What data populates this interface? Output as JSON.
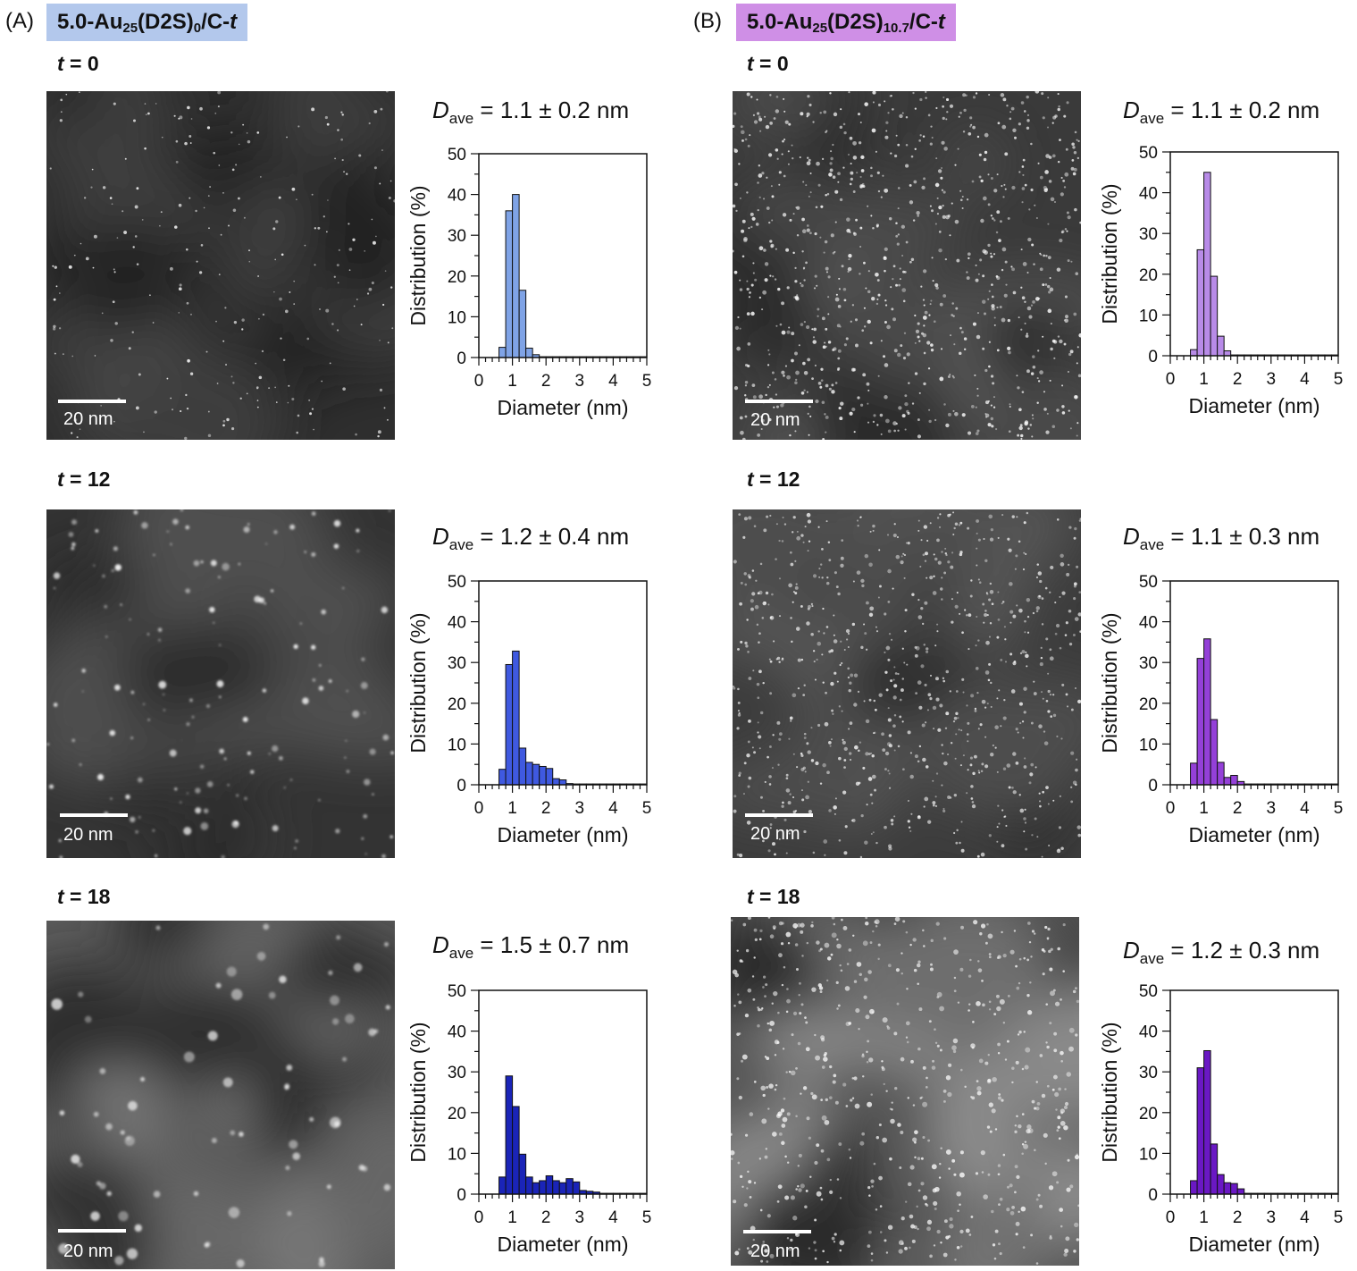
{
  "panels": [
    {
      "letter": "(A)",
      "title_main": "5.0-Au",
      "title_sub1": "25",
      "title_mid": "(D2S)",
      "title_sub2": "0",
      "title_tail": "/C-",
      "title_t": "t",
      "title_bg": "#b3c8ec"
    },
    {
      "letter": "(B)",
      "title_main": "5.0-Au",
      "title_sub1": "25",
      "title_mid": "(D2S)",
      "title_sub2": "10.7",
      "title_tail": "/C-",
      "title_t": "t",
      "title_bg": "#cf8fe6"
    }
  ],
  "rows": [
    {
      "t_sym": "t",
      "t_eq": " = 0"
    },
    {
      "t_sym": "t",
      "t_eq": " = 12"
    },
    {
      "t_sym": "t",
      "t_eq": " = 18"
    }
  ],
  "scale_label": "20 nm",
  "dave": [
    {
      "D": "D",
      "sub": "ave",
      "text": " = 1.1 ± 0.2 nm"
    },
    {
      "D": "D",
      "sub": "ave",
      "text": " = 1.2 ± 0.4 nm"
    },
    {
      "D": "D",
      "sub": "ave",
      "text": " = 1.5 ± 0.7 nm"
    },
    {
      "D": "D",
      "sub": "ave",
      "text": " = 1.1 ± 0.2 nm"
    },
    {
      "D": "D",
      "sub": "ave",
      "text": " = 1.1 ± 0.3 nm"
    },
    {
      "D": "D",
      "sub": "ave",
      "text": " = 1.2 ± 0.3 nm"
    }
  ],
  "chart_data": [
    {
      "type": "bar",
      "panel": "A",
      "t": 0,
      "color": "#7fa3e6",
      "xlabel": "Diameter (nm)",
      "ylabel": "Distribution (%)",
      "xlim": [
        0,
        5
      ],
      "ylim": [
        0,
        50
      ],
      "xticks": [
        0,
        1,
        2,
        3,
        4,
        5
      ],
      "yticks": [
        0,
        10,
        20,
        30,
        40,
        50
      ],
      "bin_width": 0.2,
      "bins": [
        0.6,
        0.8,
        1.0,
        1.2,
        1.4,
        1.6,
        1.8,
        2.0,
        2.2,
        2.4,
        2.6,
        2.8,
        3.0,
        3.2,
        3.4,
        3.6,
        3.8,
        4.0,
        4.2,
        4.4,
        4.6,
        4.8
      ],
      "values": [
        2.5,
        36,
        40,
        16.5,
        2.3,
        0.7,
        0.2,
        0.2,
        0.2,
        0.2,
        0.2,
        0.2,
        0.2,
        0.2,
        0.2,
        0.2,
        0.2,
        0.2,
        0.2,
        0.2,
        0.2,
        0.2
      ]
    },
    {
      "type": "bar",
      "panel": "A",
      "t": 12,
      "color": "#3f59e0",
      "xlabel": "Diameter (nm)",
      "ylabel": "Distribution (%)",
      "xlim": [
        0,
        5
      ],
      "ylim": [
        0,
        50
      ],
      "xticks": [
        0,
        1,
        2,
        3,
        4,
        5
      ],
      "yticks": [
        0,
        10,
        20,
        30,
        40,
        50
      ],
      "bin_width": 0.2,
      "bins": [
        0.6,
        0.8,
        1.0,
        1.2,
        1.4,
        1.6,
        1.8,
        2.0,
        2.2,
        2.4,
        2.6,
        2.8,
        3.0,
        3.2,
        3.4,
        3.6,
        3.8,
        4.0,
        4.2,
        4.4,
        4.6,
        4.8
      ],
      "values": [
        3.8,
        29.5,
        32.8,
        9,
        5.5,
        5,
        4.5,
        4,
        1.5,
        1.2,
        0.3,
        0.2,
        0.2,
        0.2,
        0.2,
        0.2,
        0.2,
        0.2,
        0.2,
        0.2,
        0.2,
        0.2
      ]
    },
    {
      "type": "bar",
      "panel": "A",
      "t": 18,
      "color": "#1a24b8",
      "xlabel": "Diameter (nm)",
      "ylabel": "Distribution (%)",
      "xlim": [
        0,
        5
      ],
      "ylim": [
        0,
        50
      ],
      "xticks": [
        0,
        1,
        2,
        3,
        4,
        5
      ],
      "yticks": [
        0,
        10,
        20,
        30,
        40,
        50
      ],
      "bin_width": 0.2,
      "bins": [
        0.6,
        0.8,
        1.0,
        1.2,
        1.4,
        1.6,
        1.8,
        2.0,
        2.2,
        2.4,
        2.6,
        2.8,
        3.0,
        3.2,
        3.4,
        3.6,
        3.8,
        4.0,
        4.2,
        4.4,
        4.6,
        4.8
      ],
      "values": [
        4.2,
        29,
        21.5,
        9.8,
        4.2,
        2.8,
        3.3,
        4.5,
        3.3,
        2.8,
        3.8,
        3,
        0.9,
        0.7,
        0.5,
        0.2,
        0.2,
        0.2,
        0.2,
        0.2,
        0.2,
        0.2
      ]
    },
    {
      "type": "bar",
      "panel": "B",
      "t": 0,
      "color": "#b88be8",
      "xlabel": "Diameter (nm)",
      "ylabel": "Distribution (%)",
      "xlim": [
        0,
        5
      ],
      "ylim": [
        0,
        50
      ],
      "xticks": [
        0,
        1,
        2,
        3,
        4,
        5
      ],
      "yticks": [
        0,
        10,
        20,
        30,
        40,
        50
      ],
      "bin_width": 0.2,
      "bins": [
        0.6,
        0.8,
        1.0,
        1.2,
        1.4,
        1.6,
        1.8,
        2.0,
        2.2,
        2.4,
        2.6,
        2.8,
        3.0,
        3.2,
        3.4,
        3.6,
        3.8,
        4.0,
        4.2,
        4.4,
        4.6,
        4.8
      ],
      "values": [
        1.5,
        26,
        45,
        19.5,
        4.8,
        1.2,
        0.2,
        0.2,
        0.2,
        0.2,
        0.2,
        0.2,
        0.2,
        0.2,
        0.2,
        0.2,
        0.2,
        0.2,
        0.2,
        0.2,
        0.2,
        0.2
      ]
    },
    {
      "type": "bar",
      "panel": "B",
      "t": 12,
      "color": "#9440d8",
      "xlabel": "Diameter (nm)",
      "ylabel": "Distribution (%)",
      "xlim": [
        0,
        5
      ],
      "ylim": [
        0,
        50
      ],
      "xticks": [
        0,
        1,
        2,
        3,
        4,
        5
      ],
      "yticks": [
        0,
        10,
        20,
        30,
        40,
        50
      ],
      "bin_width": 0.2,
      "bins": [
        0.6,
        0.8,
        1.0,
        1.2,
        1.4,
        1.6,
        1.8,
        2.0,
        2.2,
        2.4,
        2.6,
        2.8,
        3.0,
        3.2,
        3.4,
        3.6,
        3.8,
        4.0,
        4.2,
        4.4,
        4.6,
        4.8
      ],
      "values": [
        5.3,
        31,
        35.8,
        16,
        5.5,
        1.8,
        2.3,
        0.8,
        0.2,
        0.2,
        0.2,
        0.2,
        0.2,
        0.2,
        0.2,
        0.2,
        0.2,
        0.2,
        0.2,
        0.2,
        0.2,
        0.2
      ]
    },
    {
      "type": "bar",
      "panel": "B",
      "t": 18,
      "color": "#6a18c4",
      "xlabel": "Diameter (nm)",
      "ylabel": "Distribution (%)",
      "xlim": [
        0,
        5
      ],
      "ylim": [
        0,
        50
      ],
      "xticks": [
        0,
        1,
        2,
        3,
        4,
        5
      ],
      "yticks": [
        0,
        10,
        20,
        30,
        40,
        50
      ],
      "bin_width": 0.2,
      "bins": [
        0.6,
        0.8,
        1.0,
        1.2,
        1.4,
        1.6,
        1.8,
        2.0,
        2.2,
        2.4,
        2.6,
        2.8,
        3.0,
        3.2,
        3.4,
        3.6,
        3.8,
        4.0,
        4.2,
        4.4,
        4.6,
        4.8
      ],
      "values": [
        3.3,
        31,
        35.2,
        12.3,
        4.8,
        2.8,
        2.6,
        1.3,
        0.2,
        0.2,
        0.2,
        0.2,
        0.2,
        0.2,
        0.2,
        0.2,
        0.2,
        0.2,
        0.2,
        0.2,
        0.2,
        0.2
      ]
    }
  ]
}
